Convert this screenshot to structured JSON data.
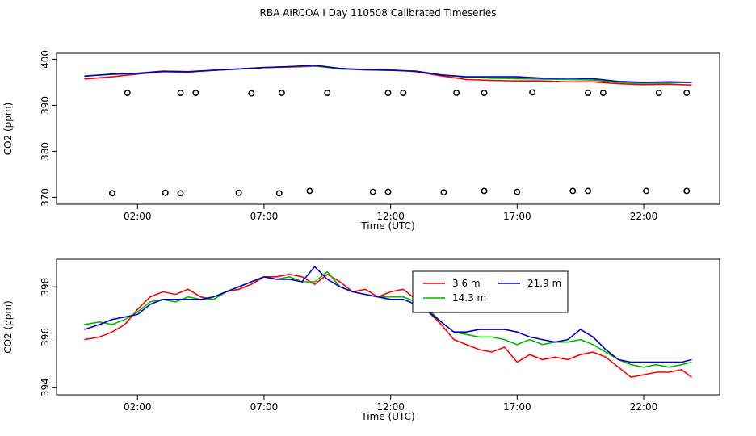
{
  "figure": {
    "title": "RBA AIRCOA I  Day 110508  Calibrated Timeseries"
  },
  "chart_data": [
    {
      "type": "scatter",
      "xlabel": "Time (UTC)",
      "ylabel": "CO2 (ppm)",
      "xlim": [
        -1.2,
        25.0
      ],
      "ylim": [
        368.5,
        401.3
      ],
      "x_ticks": [
        2,
        7,
        12,
        17,
        22
      ],
      "x_tick_labels": [
        "02:00",
        "07:00",
        "12:00",
        "17:00",
        "22:00"
      ],
      "y_ticks": [
        370,
        380,
        390,
        400
      ],
      "y_tick_labels": [
        "370",
        "380",
        "390",
        "400"
      ],
      "grid": false,
      "lines": [
        {
          "name": "3.6 m",
          "color": "#ff0000",
          "x": [
            -0.1,
            1.0,
            2.0,
            3.0,
            4.0,
            5.0,
            6.0,
            7.0,
            8.0,
            9.0,
            10.0,
            11.0,
            12.0,
            13.0,
            14.0,
            15.0,
            16.0,
            17.0,
            18.0,
            19.0,
            20.0,
            21.0,
            22.0,
            23.0,
            23.9
          ],
          "y": [
            395.7,
            396.2,
            396.8,
            397.3,
            397.2,
            397.6,
            397.9,
            398.2,
            398.3,
            398.5,
            398.0,
            397.8,
            397.7,
            397.3,
            396.4,
            395.6,
            395.4,
            395.3,
            395.3,
            395.1,
            395.1,
            394.7,
            394.5,
            394.6,
            394.4
          ]
        },
        {
          "name": "14.3 m",
          "color": "#00bb00",
          "x": [
            -0.1,
            1.0,
            2.0,
            3.0,
            4.0,
            5.0,
            6.0,
            7.0,
            8.0,
            9.0,
            10.0,
            11.0,
            12.0,
            13.0,
            14.0,
            15.0,
            16.0,
            17.0,
            18.0,
            19.0,
            20.0,
            21.0,
            22.0,
            23.0,
            23.9
          ],
          "y": [
            396.4,
            396.7,
            397.0,
            397.4,
            397.3,
            397.6,
            397.9,
            398.2,
            398.4,
            398.6,
            397.9,
            397.7,
            397.6,
            397.4,
            396.6,
            396.1,
            395.9,
            395.8,
            395.7,
            395.6,
            395.5,
            395.0,
            394.8,
            394.9,
            395.0
          ]
        },
        {
          "name": "21.9 m",
          "color": "#0000cc",
          "x": [
            -0.1,
            1.0,
            2.0,
            3.0,
            4.0,
            5.0,
            6.0,
            7.0,
            8.0,
            9.0,
            10.0,
            11.0,
            12.0,
            13.0,
            14.0,
            15.0,
            16.0,
            17.0,
            18.0,
            19.0,
            20.0,
            21.0,
            22.0,
            23.0,
            23.9
          ],
          "y": [
            396.3,
            396.8,
            396.9,
            397.4,
            397.3,
            397.6,
            397.9,
            398.2,
            398.4,
            398.7,
            398.0,
            397.7,
            397.6,
            397.4,
            396.6,
            396.2,
            396.2,
            396.2,
            395.9,
            395.9,
            395.8,
            395.2,
            395.0,
            395.1,
            395.0
          ]
        }
      ],
      "points": {
        "symbol": "open-circle",
        "x": [
          1.0,
          1.6,
          3.1,
          3.7,
          3.7,
          4.3,
          6.0,
          6.5,
          7.6,
          7.7,
          8.8,
          9.5,
          11.3,
          11.9,
          11.9,
          12.5,
          14.1,
          14.6,
          15.7,
          15.7,
          17.0,
          17.6,
          19.2,
          19.8,
          19.8,
          20.4,
          22.1,
          22.6,
          23.7,
          23.7
        ],
        "y": [
          370.9,
          392.7,
          371.0,
          392.7,
          370.9,
          392.7,
          371.0,
          392.6,
          370.9,
          392.7,
          371.4,
          392.7,
          371.2,
          392.7,
          371.2,
          392.7,
          371.1,
          392.7,
          371.4,
          392.7,
          371.2,
          392.8,
          371.4,
          392.7,
          371.4,
          392.7,
          371.4,
          392.7,
          371.4,
          392.7
        ]
      }
    },
    {
      "type": "line",
      "xlabel": "Time (UTC)",
      "ylabel": "CO2 (ppm)",
      "xlim": [
        -1.2,
        25.0
      ],
      "ylim": [
        393.7,
        399.1
      ],
      "x_ticks": [
        2,
        7,
        12,
        17,
        22
      ],
      "x_tick_labels": [
        "02:00",
        "07:00",
        "12:00",
        "17:00",
        "22:00"
      ],
      "y_ticks": [
        394,
        396,
        398
      ],
      "y_tick_labels": [
        "394",
        "396",
        "398"
      ],
      "grid": false,
      "legend": "top-center",
      "series": [
        {
          "name": "3.6 m",
          "color": "#ff0000",
          "x": [
            -0.1,
            0.5,
            1.0,
            1.5,
            2.0,
            2.5,
            3.0,
            3.5,
            4.0,
            4.5,
            5.0,
            5.5,
            6.0,
            6.5,
            7.0,
            7.5,
            8.0,
            8.5,
            9.0,
            9.5,
            10.0,
            10.5,
            11.0,
            11.5,
            12.0,
            12.5,
            13.0,
            13.5,
            14.0,
            14.5,
            15.0,
            15.5,
            16.0,
            16.5,
            17.0,
            17.5,
            18.0,
            18.5,
            19.0,
            19.5,
            20.0,
            20.5,
            21.0,
            21.5,
            22.0,
            22.5,
            23.0,
            23.5,
            23.9
          ],
          "y": [
            395.9,
            396.0,
            396.2,
            396.5,
            397.1,
            397.6,
            397.8,
            397.7,
            397.9,
            397.6,
            397.5,
            397.8,
            397.9,
            398.1,
            398.4,
            398.4,
            398.5,
            398.4,
            398.1,
            398.5,
            398.2,
            397.8,
            397.9,
            397.6,
            397.8,
            397.9,
            397.5,
            397.0,
            396.5,
            395.9,
            395.7,
            395.5,
            395.4,
            395.6,
            395.0,
            395.3,
            395.1,
            395.2,
            395.1,
            395.3,
            395.4,
            395.2,
            394.8,
            394.4,
            394.5,
            394.6,
            394.6,
            394.7,
            394.4
          ]
        },
        {
          "name": "14.3 m",
          "color": "#00bb00",
          "x": [
            -0.1,
            0.5,
            1.0,
            1.5,
            2.0,
            2.5,
            3.0,
            3.5,
            4.0,
            4.5,
            5.0,
            5.5,
            6.0,
            6.5,
            7.0,
            7.5,
            8.0,
            8.5,
            9.0,
            9.5,
            10.0,
            10.5,
            11.0,
            11.5,
            12.0,
            12.5,
            13.0,
            13.5,
            14.0,
            14.5,
            15.0,
            15.5,
            16.0,
            16.5,
            17.0,
            17.5,
            18.0,
            18.5,
            19.0,
            19.5,
            20.0,
            20.5,
            21.0,
            21.5,
            22.0,
            22.5,
            23.0,
            23.5,
            23.9
          ],
          "y": [
            396.5,
            396.6,
            396.5,
            396.7,
            397.0,
            397.4,
            397.5,
            397.4,
            397.6,
            397.5,
            397.5,
            397.8,
            398.0,
            398.2,
            398.4,
            398.3,
            398.4,
            398.2,
            398.2,
            398.6,
            398.0,
            397.8,
            397.7,
            397.6,
            397.6,
            397.6,
            397.4,
            397.1,
            396.6,
            396.2,
            396.1,
            396.0,
            396.0,
            395.9,
            395.7,
            395.9,
            395.7,
            395.8,
            395.8,
            395.9,
            395.7,
            395.4,
            395.1,
            394.9,
            394.8,
            394.9,
            394.8,
            394.9,
            395.0
          ]
        },
        {
          "name": "21.9 m",
          "color": "#0000cc",
          "x": [
            -0.1,
            0.5,
            1.0,
            1.5,
            2.0,
            2.5,
            3.0,
            3.5,
            4.0,
            4.5,
            5.0,
            5.5,
            6.0,
            6.5,
            7.0,
            7.5,
            8.0,
            8.5,
            9.0,
            9.5,
            10.0,
            10.5,
            11.0,
            11.5,
            12.0,
            12.5,
            13.0,
            13.5,
            14.0,
            14.5,
            15.0,
            15.5,
            16.0,
            16.5,
            17.0,
            17.5,
            18.0,
            18.5,
            19.0,
            19.5,
            20.0,
            20.5,
            21.0,
            21.5,
            22.0,
            22.5,
            23.0,
            23.5,
            23.9
          ],
          "y": [
            396.3,
            396.5,
            396.7,
            396.8,
            396.9,
            397.3,
            397.5,
            397.5,
            397.5,
            397.5,
            397.6,
            397.8,
            398.0,
            398.2,
            398.4,
            398.3,
            398.3,
            398.2,
            398.8,
            398.3,
            398.0,
            397.8,
            397.7,
            397.6,
            397.5,
            397.5,
            397.3,
            397.0,
            396.6,
            396.2,
            396.2,
            396.3,
            396.3,
            396.3,
            396.2,
            396.0,
            395.9,
            395.8,
            395.9,
            396.3,
            396.0,
            395.5,
            395.1,
            395.0,
            395.0,
            395.0,
            395.0,
            395.0,
            395.1
          ]
        }
      ]
    }
  ]
}
